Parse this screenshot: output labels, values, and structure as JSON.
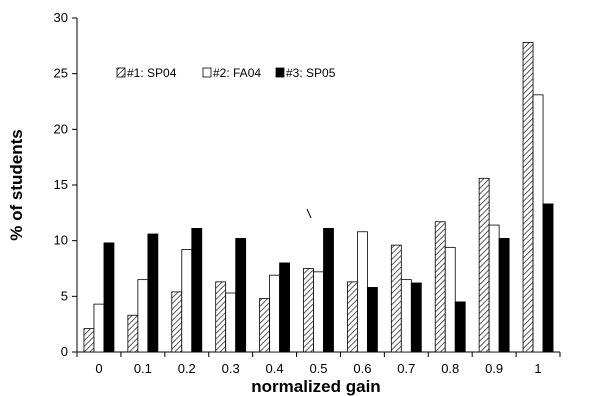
{
  "chart_data": {
    "type": "bar",
    "title": "",
    "xlabel": "normalized gain",
    "ylabel": "% of students",
    "ylim": [
      0,
      30
    ],
    "yticks": [
      0,
      5,
      10,
      15,
      20,
      25,
      30
    ],
    "grid": false,
    "legend_position": "top-left",
    "categories": [
      "0",
      "0.1",
      "0.2",
      "0.3",
      "0.4",
      "0.5",
      "0.6",
      "0.7",
      "0.8",
      "0.9",
      "1"
    ],
    "series": [
      {
        "name": "#1: SP04",
        "fill": "hatched",
        "values": [
          2.1,
          3.3,
          5.4,
          6.3,
          4.8,
          7.5,
          6.3,
          9.6,
          11.7,
          15.6,
          27.8
        ]
      },
      {
        "name": "#2: FA04",
        "fill": "#ffffff",
        "values": [
          4.3,
          6.5,
          9.2,
          5.3,
          6.9,
          7.2,
          10.8,
          6.5,
          9.4,
          11.4,
          23.1
        ]
      },
      {
        "name": "#3: SP05",
        "fill": "#000000",
        "values": [
          9.8,
          10.6,
          11.1,
          10.2,
          8.0,
          11.1,
          5.8,
          6.2,
          4.5,
          10.2,
          13.3
        ]
      }
    ]
  }
}
